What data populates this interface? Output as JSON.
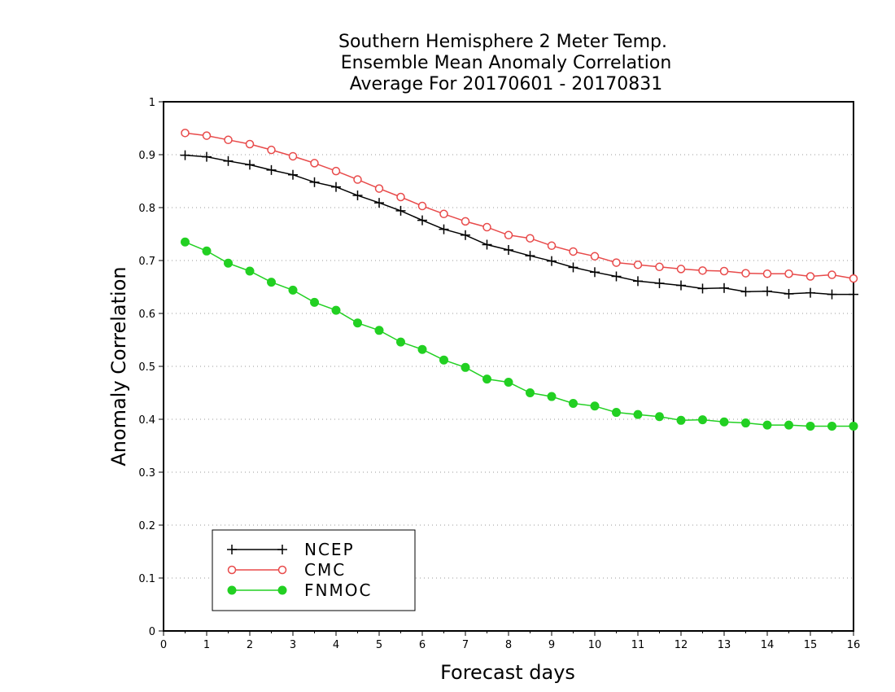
{
  "chart_data": {
    "type": "line",
    "title": [
      "Southern Hemisphere 2 Meter Temp.",
      "Ensemble Mean Anomaly Correlation",
      "Average For 20170601 - 20170831"
    ],
    "xlabel": "Forecast days",
    "ylabel": "Anomaly Correlation",
    "xlim": [
      0,
      16
    ],
    "ylim": [
      0,
      1
    ],
    "x_ticks": [
      "0",
      "1",
      "2",
      "3",
      "4",
      "5",
      "6",
      "7",
      "8",
      "9",
      "10",
      "11",
      "12",
      "13",
      "14",
      "15",
      "16"
    ],
    "y_ticks": [
      "0",
      "0.1",
      "0.2",
      "0.3",
      "0.4",
      "0.5",
      "0.6",
      "0.7",
      "0.8",
      "0.9",
      "1"
    ],
    "grid": "horizontal dotted",
    "legend_position": "bottom-left",
    "x": [
      0.5,
      1,
      1.5,
      2,
      2.5,
      3,
      3.5,
      4,
      4.5,
      5,
      5.5,
      6,
      6.5,
      7,
      7.5,
      8,
      8.5,
      9,
      9.5,
      10,
      10.5,
      11,
      11.5,
      12,
      12.5,
      13,
      13.5,
      14,
      14.5,
      15,
      15.5,
      16
    ],
    "series": [
      {
        "name": "NCEP",
        "color": "#000000",
        "marker": "plus",
        "values": [
          0.899,
          0.896,
          0.888,
          0.881,
          0.871,
          0.862,
          0.848,
          0.839,
          0.823,
          0.809,
          0.794,
          0.776,
          0.759,
          0.748,
          0.73,
          0.72,
          0.709,
          0.699,
          0.687,
          0.678,
          0.67,
          0.661,
          0.657,
          0.653,
          0.647,
          0.648,
          0.641,
          0.642,
          0.637,
          0.639,
          0.636,
          0.636
        ]
      },
      {
        "name": "CMC",
        "color": "#e84a4a",
        "marker": "open-circle",
        "values": [
          0.941,
          0.936,
          0.928,
          0.92,
          0.909,
          0.897,
          0.884,
          0.869,
          0.853,
          0.836,
          0.82,
          0.803,
          0.788,
          0.774,
          0.763,
          0.748,
          0.742,
          0.728,
          0.717,
          0.708,
          0.696,
          0.692,
          0.688,
          0.684,
          0.681,
          0.68,
          0.676,
          0.675,
          0.675,
          0.67,
          0.673,
          0.666
        ]
      },
      {
        "name": "FNMOC",
        "color": "#22d022",
        "marker": "filled-circle",
        "values": [
          0.735,
          0.718,
          0.695,
          0.68,
          0.659,
          0.644,
          0.621,
          0.606,
          0.582,
          0.568,
          0.546,
          0.532,
          0.512,
          0.498,
          0.476,
          0.47,
          0.45,
          0.443,
          0.43,
          0.425,
          0.413,
          0.409,
          0.405,
          0.398,
          0.399,
          0.395,
          0.393,
          0.389,
          0.389,
          0.387,
          0.387,
          0.387
        ]
      }
    ]
  }
}
